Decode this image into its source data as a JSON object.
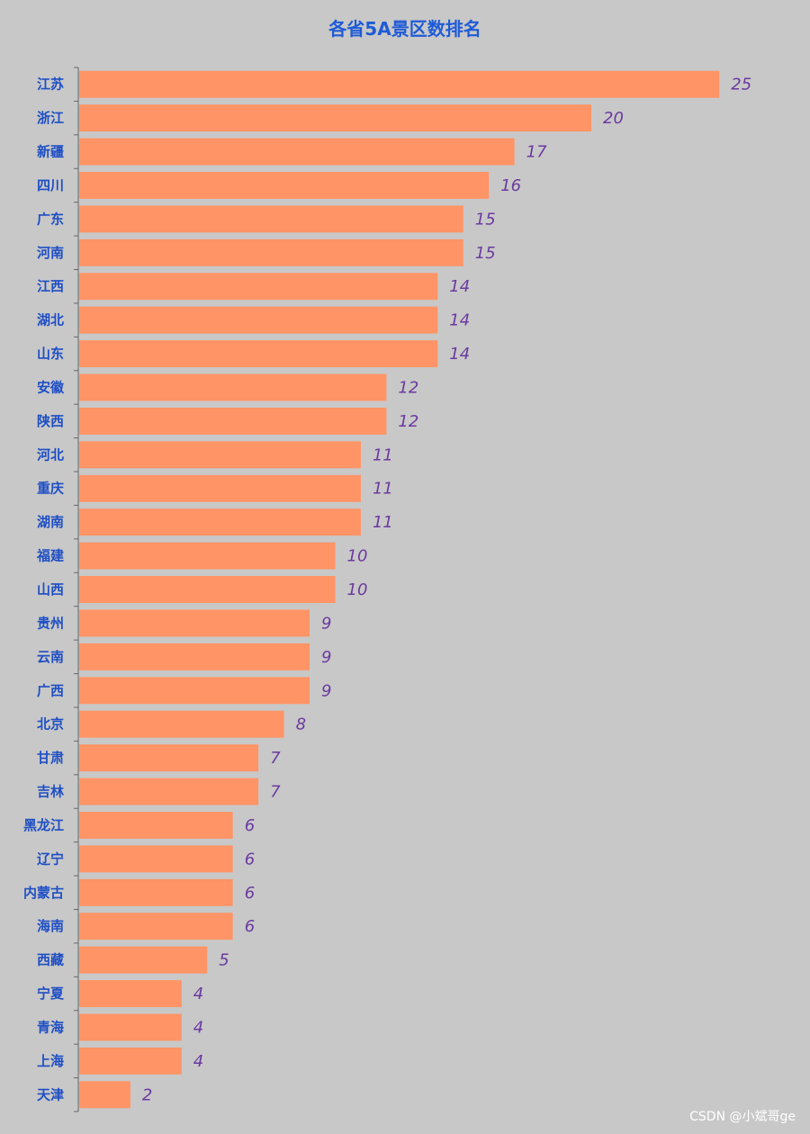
{
  "colors": {
    "background": "#c8c8c8",
    "bar": "#ff9466",
    "title": "#1f5bd6",
    "category_label": "#1f4fc4",
    "value_label": "#6b3aa0",
    "axis": "#666666"
  },
  "chart_data": {
    "type": "bar",
    "orientation": "horizontal",
    "title": "各省5A景区数排名",
    "categories": [
      "江苏",
      "浙江",
      "新疆",
      "四川",
      "广东",
      "河南",
      "江西",
      "湖北",
      "山东",
      "安徽",
      "陕西",
      "河北",
      "重庆",
      "湖南",
      "福建",
      "山西",
      "贵州",
      "云南",
      "广西",
      "北京",
      "甘肃",
      "吉林",
      "黑龙江",
      "辽宁",
      "内蒙古",
      "海南",
      "西藏",
      "宁夏",
      "青海",
      "上海",
      "天津"
    ],
    "values": [
      25,
      20,
      17,
      16,
      15,
      15,
      14,
      14,
      14,
      12,
      12,
      11,
      11,
      11,
      10,
      10,
      9,
      9,
      9,
      8,
      7,
      7,
      6,
      6,
      6,
      6,
      5,
      4,
      4,
      4,
      2
    ],
    "xlim": [
      0,
      25
    ],
    "xlabel": "",
    "ylabel": "",
    "grid": false,
    "legend": "none",
    "data_labels": true
  },
  "watermark": "CSDN @小斌哥ge"
}
